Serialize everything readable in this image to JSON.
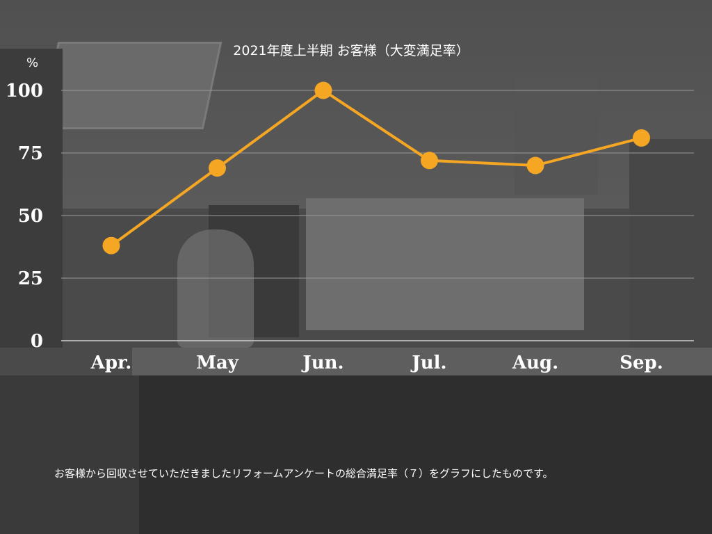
{
  "title": "2021年度上半期 お客様（大変満足率）",
  "footnote": "お客様から回収させていただきましたリフォームアンケートの総合満足率（７）をグラフにしたものです。",
  "chart_data": {
    "type": "line",
    "title": "2021年度上半期 お客様（大変満足率）",
    "ylabel": "%",
    "xlabel": "",
    "categories": [
      "Apr.",
      "May",
      "Jun.",
      "Jul.",
      "Aug.",
      "Sep."
    ],
    "series": [
      {
        "values": [
          38,
          69,
          100,
          72,
          70,
          81
        ]
      }
    ],
    "ylim": [
      0,
      100
    ],
    "yticks": [
      0,
      25,
      50,
      75,
      100
    ],
    "grid": true,
    "color": "#f5a623"
  }
}
